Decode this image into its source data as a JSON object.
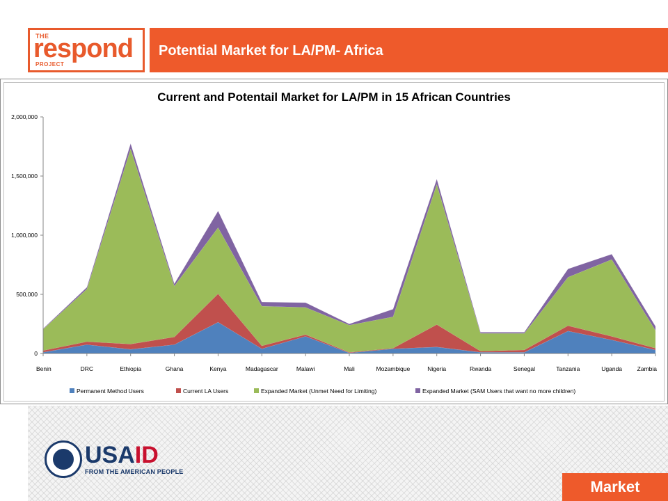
{
  "header": {
    "logo_the": "THE",
    "logo_word": "respond",
    "logo_project": "PROJECT",
    "title": "Potential Market for LA/PM- Africa"
  },
  "footer": {
    "usaid_us": "USA",
    "usaid_id": "ID",
    "usaid_tagline": "FROM THE AMERICAN PEOPLE",
    "market_label": "Market"
  },
  "colors": {
    "accent": "#ee5a2b",
    "usaid_navy": "#1b3a6b",
    "usaid_red": "#c8102e"
  },
  "chart_data": {
    "type": "area",
    "stacked": true,
    "title": "Current and Potentail Market for LA/PM in 15 African Countries",
    "categories": [
      "Benin",
      "DRC",
      "Ethiopia",
      "Ghana",
      "Kenya",
      "Madagascar",
      "Malawi",
      "Mali",
      "Mozambique",
      "Nigeria",
      "Rwanda",
      "Senegal",
      "Tanzania",
      "Uganda",
      "Zambia"
    ],
    "ylim": [
      0,
      2000000
    ],
    "yticks": [
      0,
      500000,
      1000000,
      1500000,
      2000000
    ],
    "ytick_labels": [
      "0",
      "500,000",
      "1,000,000",
      "1,500,000",
      "2,000,000"
    ],
    "grid": false,
    "legend_position": "bottom",
    "series": [
      {
        "name": "Permanent Method Users",
        "color": "#4f81bd",
        "values": [
          10000,
          75000,
          35000,
          75000,
          265000,
          40000,
          145000,
          5000,
          40000,
          55000,
          10000,
          10000,
          190000,
          115000,
          30000
        ]
      },
      {
        "name": "Current LA Users",
        "color": "#c0504d",
        "values": [
          15000,
          25000,
          45000,
          65000,
          240000,
          25000,
          15000,
          5000,
          5000,
          190000,
          10000,
          20000,
          45000,
          30000,
          15000
        ]
      },
      {
        "name": "Expanded Market (Unmet Need for Limiting)",
        "color": "#9bbb59",
        "values": [
          180000,
          445000,
          1650000,
          430000,
          560000,
          335000,
          230000,
          230000,
          265000,
          1185000,
          150000,
          140000,
          410000,
          650000,
          150000
        ]
      },
      {
        "name": "Expanded Market (SAM Users that want no more children)",
        "color": "#8064a2",
        "values": [
          5000,
          15000,
          45000,
          20000,
          140000,
          35000,
          40000,
          10000,
          65000,
          45000,
          10000,
          10000,
          70000,
          45000,
          35000
        ]
      }
    ]
  }
}
